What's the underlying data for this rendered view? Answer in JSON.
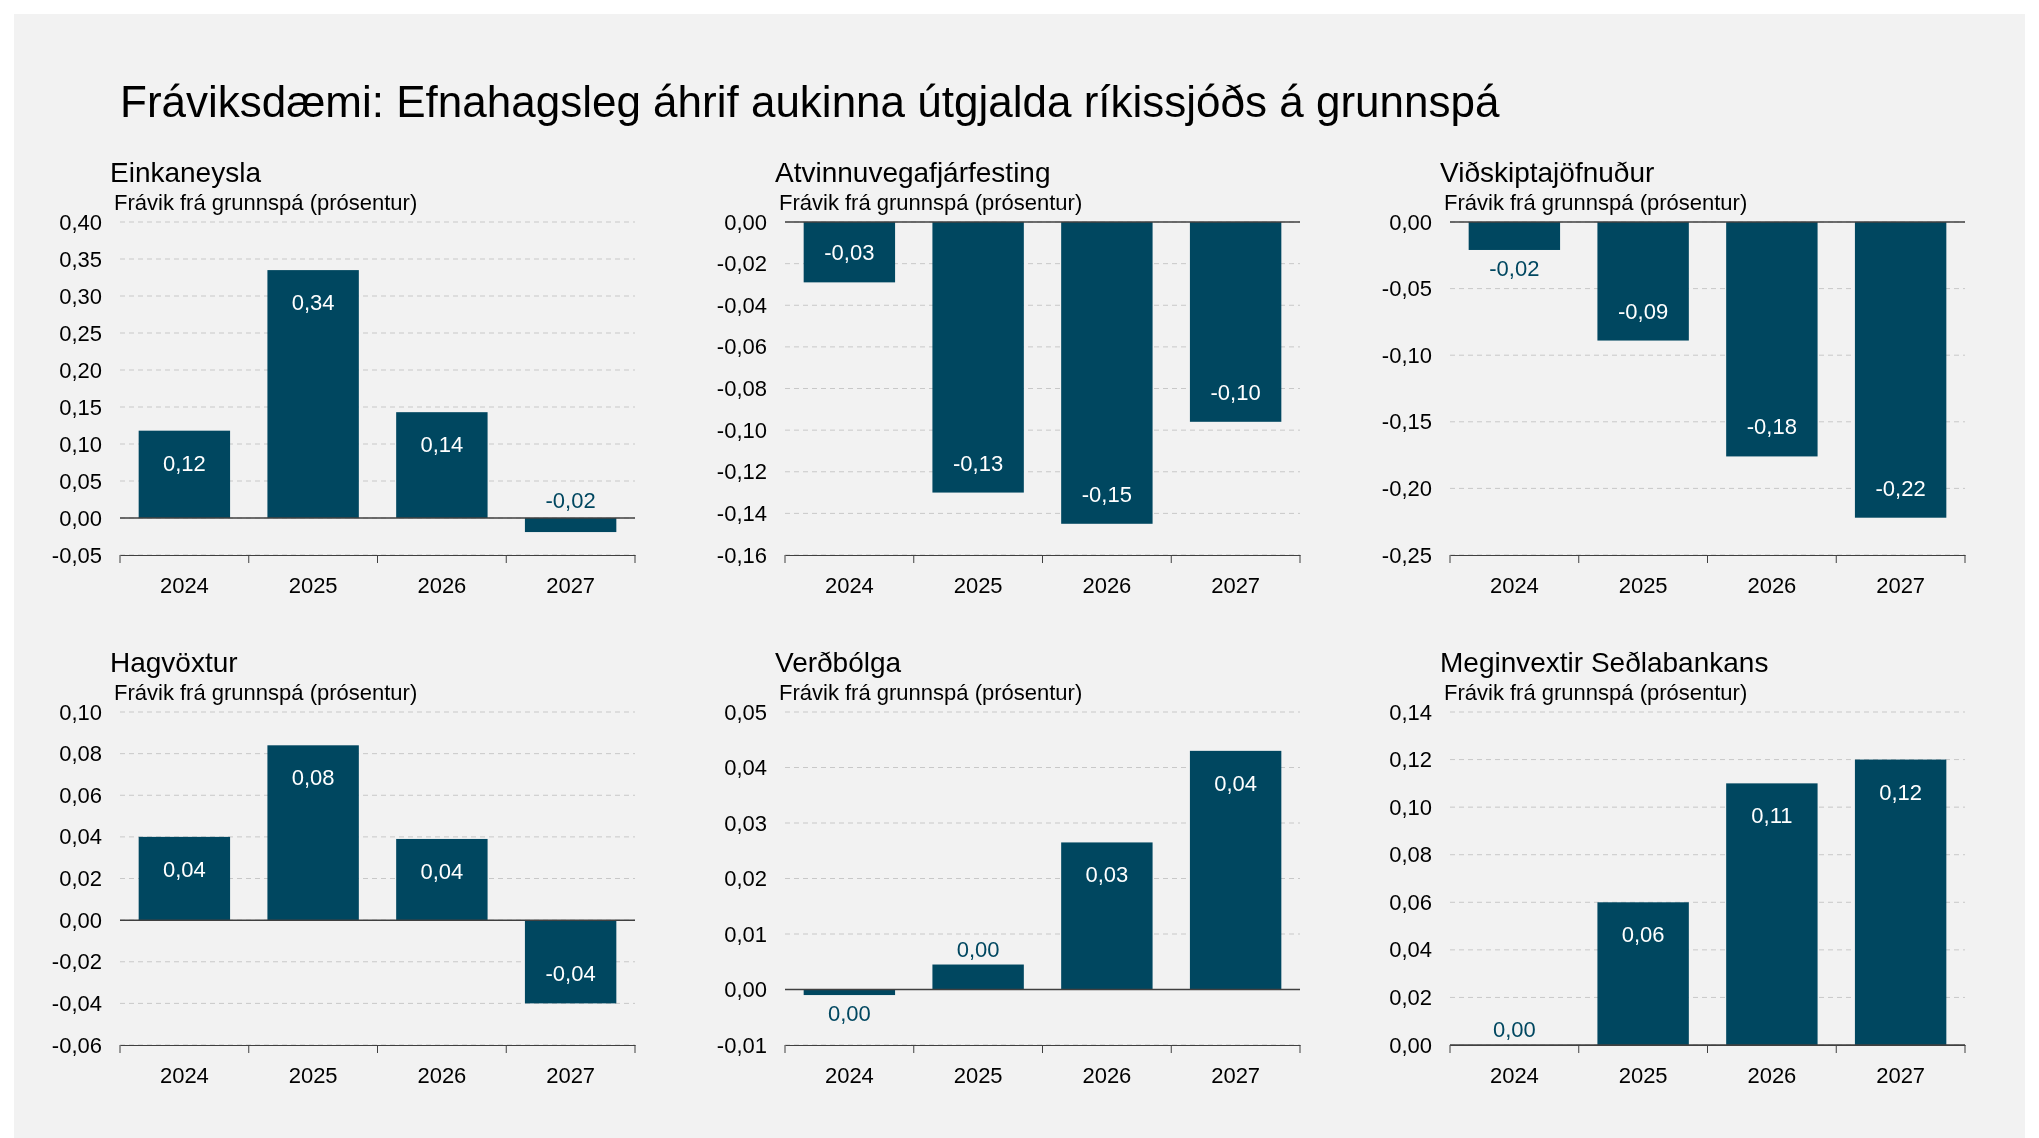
{
  "chart_data": [
    {
      "type": "bar",
      "title": "Einkaneysla",
      "ylabel": "Frávik frá grunnspá (prósentur)",
      "annotations": [
        "Fráviksdæmi: Efnahagsleg áhrif aukinna útgjalda ríkissjóðs á grunnspá"
      ],
      "categories": [
        "2024",
        "2025",
        "2026",
        "2027"
      ],
      "values": [
        0.118,
        0.335,
        0.143,
        -0.019
      ],
      "value_labels": [
        "0,12",
        "0,34",
        "0,14",
        "-0,02"
      ],
      "color": "#004760",
      "ylim": [
        -0.05,
        0.4
      ],
      "yticks": [
        {
          "value": -0.05,
          "label": "-0,05"
        },
        {
          "value": 0,
          "label": "0,00"
        },
        {
          "value": 0.05,
          "label": "0,05"
        },
        {
          "value": 0.1,
          "label": "0,10"
        },
        {
          "value": 0.15,
          "label": "0,15"
        },
        {
          "value": 0.2,
          "label": "0,20"
        },
        {
          "value": 0.25,
          "label": "0,25"
        },
        {
          "value": 0.3,
          "label": "0,30"
        },
        {
          "value": 0.35,
          "label": "0,35"
        },
        {
          "value": 0.4,
          "label": "0,40"
        }
      ],
      "grid": "y"
    },
    {
      "type": "bar",
      "title": "Atvinnuvegafjárfesting",
      "ylabel": "Frávik frá grunnspá (prósentur)",
      "categories": [
        "2024",
        "2025",
        "2026",
        "2027"
      ],
      "values": [
        -0.029,
        -0.13,
        -0.145,
        -0.096
      ],
      "value_labels": [
        "-0,03",
        "-0,13",
        "-0,15",
        "-0,10"
      ],
      "color": "#004760",
      "ylim": [
        -0.16,
        0
      ],
      "yticks": [
        {
          "value": -0.16,
          "label": "-0,16"
        },
        {
          "value": -0.14,
          "label": "-0,14"
        },
        {
          "value": -0.12,
          "label": "-0,12"
        },
        {
          "value": -0.1,
          "label": "-0,10"
        },
        {
          "value": -0.08,
          "label": "-0,08"
        },
        {
          "value": -0.06,
          "label": "-0,06"
        },
        {
          "value": -0.04,
          "label": "-0,04"
        },
        {
          "value": -0.02,
          "label": "-0,02"
        },
        {
          "value": 0,
          "label": "0,00"
        }
      ],
      "grid": "y"
    },
    {
      "type": "bar",
      "title": "Viðskiptajöfnuður",
      "ylabel": "Frávik frá grunnspá (prósentur)",
      "categories": [
        "2024",
        "2025",
        "2026",
        "2027"
      ],
      "values": [
        -0.021,
        -0.089,
        -0.176,
        -0.222
      ],
      "value_labels": [
        "-0,02",
        "-0,09",
        "-0,18",
        "-0,22"
      ],
      "color": "#004760",
      "ylim": [
        -0.25,
        0
      ],
      "yticks": [
        {
          "value": -0.25,
          "label": "-0,25"
        },
        {
          "value": -0.2,
          "label": "-0,20"
        },
        {
          "value": -0.15,
          "label": "-0,15"
        },
        {
          "value": -0.1,
          "label": "-0,10"
        },
        {
          "value": -0.05,
          "label": "-0,05"
        },
        {
          "value": 0,
          "label": "0,00"
        }
      ],
      "grid": "y"
    },
    {
      "type": "bar",
      "title": "Hagvöxtur",
      "ylabel": "Frávik frá grunnspá (prósentur)",
      "categories": [
        "2024",
        "2025",
        "2026",
        "2027"
      ],
      "values": [
        0.04,
        0.084,
        0.039,
        -0.04
      ],
      "value_labels": [
        "0,04",
        "0,08",
        "0,04",
        "-0,04"
      ],
      "color": "#004760",
      "ylim": [
        -0.06,
        0.1
      ],
      "yticks": [
        {
          "value": -0.06,
          "label": "-0,06"
        },
        {
          "value": -0.04,
          "label": "-0,04"
        },
        {
          "value": -0.02,
          "label": "-0,02"
        },
        {
          "value": 0,
          "label": "0,00"
        },
        {
          "value": 0.02,
          "label": "0,02"
        },
        {
          "value": 0.04,
          "label": "0,04"
        },
        {
          "value": 0.06,
          "label": "0,06"
        },
        {
          "value": 0.08,
          "label": "0,08"
        },
        {
          "value": 0.1,
          "label": "0,10"
        }
      ],
      "grid": "y"
    },
    {
      "type": "bar",
      "title": "Verðbólga",
      "ylabel": "Frávik frá grunnspá (prósentur)",
      "categories": [
        "2024",
        "2025",
        "2026",
        "2027"
      ],
      "values": [
        -0.001,
        0.0045,
        0.0265,
        0.043
      ],
      "value_labels": [
        "0,00",
        "0,00",
        "0,03",
        "0,04"
      ],
      "color": "#004760",
      "ylim": [
        -0.01,
        0.05
      ],
      "yticks": [
        {
          "value": -0.01,
          "label": "-0,01"
        },
        {
          "value": 0,
          "label": "0,00"
        },
        {
          "value": 0.01,
          "label": "0,01"
        },
        {
          "value": 0.02,
          "label": "0,02"
        },
        {
          "value": 0.03,
          "label": "0,03"
        },
        {
          "value": 0.04,
          "label": "0,04"
        },
        {
          "value": 0.05,
          "label": "0,05"
        }
      ],
      "grid": "y"
    },
    {
      "type": "bar",
      "title": "Meginvextir Seðlabankans",
      "ylabel": "Frávik frá grunnspá (prósentur)",
      "categories": [
        "2024",
        "2025",
        "2026",
        "2027"
      ],
      "values": [
        0,
        0.06,
        0.11,
        0.12
      ],
      "value_labels": [
        "0,00",
        "0,06",
        "0,11",
        "0,12"
      ],
      "color": "#004760",
      "ylim": [
        0,
        0.14
      ],
      "yticks": [
        {
          "value": 0,
          "label": "0,00"
        },
        {
          "value": 0.02,
          "label": "0,02"
        },
        {
          "value": 0.04,
          "label": "0,04"
        },
        {
          "value": 0.06,
          "label": "0,06"
        },
        {
          "value": 0.08,
          "label": "0,08"
        },
        {
          "value": 0.1,
          "label": "0,10"
        },
        {
          "value": 0.12,
          "label": "0,12"
        },
        {
          "value": 0.14,
          "label": "0,14"
        }
      ],
      "grid": "y"
    }
  ]
}
